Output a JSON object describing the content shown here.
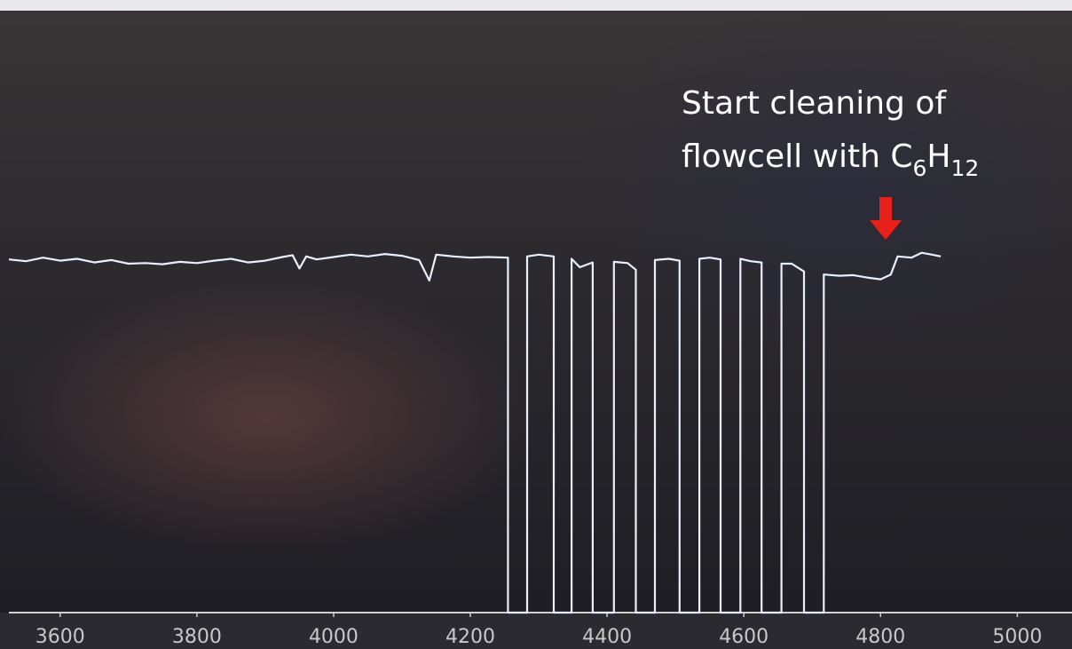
{
  "chart_data": {
    "type": "line",
    "annotation": [
      "Start cleaning of",
      "flowcell with C",
      "6",
      "H",
      "12"
    ],
    "x": [
      3525,
      3550,
      3575,
      3600,
      3625,
      3650,
      3675,
      3700,
      3725,
      3750,
      3775,
      3800,
      3825,
      3850,
      3875,
      3900,
      3925,
      3940,
      3950,
      3960,
      3975,
      4000,
      4025,
      4050,
      4075,
      4100,
      4125,
      4140,
      4150,
      4175,
      4200,
      4225,
      4255,
      4255,
      4283,
      4283,
      4300,
      4322,
      4322,
      4348,
      4348,
      4360,
      4379,
      4379,
      4410,
      4410,
      4430,
      4442,
      4442,
      4470,
      4470,
      4490,
      4506,
      4506,
      4535,
      4535,
      4550,
      4566,
      4566,
      4595,
      4595,
      4610,
      4626,
      4626,
      4655,
      4655,
      4670,
      4688,
      4688,
      4717,
      4717,
      4740,
      4760,
      4780,
      4800,
      4815,
      4825,
      4845,
      4860,
      4875,
      4888
    ],
    "values": [
      58.5,
      58.2,
      58.8,
      58.3,
      58.6,
      58.0,
      58.4,
      57.8,
      57.9,
      57.7,
      58.1,
      57.9,
      58.3,
      58.6,
      58.0,
      58.3,
      58.9,
      59.2,
      57.0,
      59.0,
      58.5,
      58.9,
      59.3,
      59.0,
      59.4,
      59.1,
      58.4,
      55.0,
      59.3,
      59.0,
      58.8,
      58.9,
      58.8,
      0,
      0,
      59.0,
      59.3,
      59.0,
      0,
      0,
      58.6,
      57.2,
      58.0,
      0,
      0,
      58.1,
      57.9,
      56.8,
      0,
      0,
      58.4,
      58.6,
      58.3,
      0,
      0,
      58.6,
      58.8,
      58.5,
      0,
      0,
      58.6,
      58.2,
      58.0,
      0,
      0,
      57.8,
      57.8,
      56.5,
      0,
      0,
      56.0,
      55.8,
      55.9,
      55.5,
      55.2,
      56.0,
      59.0,
      58.8,
      59.6,
      59.3,
      59.0
    ],
    "color": "#e6f0ff",
    "xlim": [
      3525,
      5080
    ],
    "xticks": [
      3600,
      3800,
      4000,
      4200,
      4400,
      4600,
      4800,
      5000
    ],
    "ylim": [
      0,
      100
    ],
    "grid": false
  }
}
